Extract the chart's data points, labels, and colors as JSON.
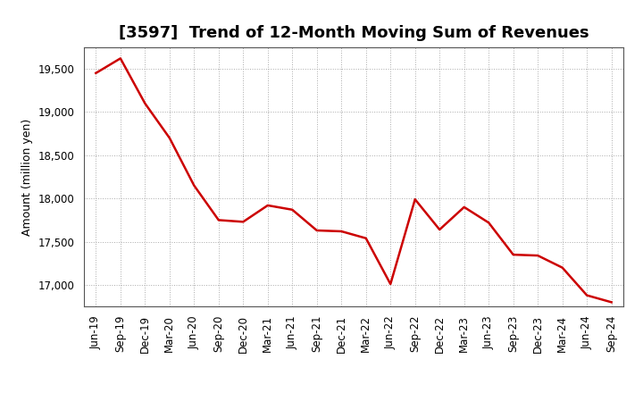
{
  "title": "[3597]  Trend of 12-Month Moving Sum of Revenues",
  "ylabel": "Amount (million yen)",
  "line_color": "#cc0000",
  "background_color": "#ffffff",
  "grid_color": "#aaaaaa",
  "xlabels": [
    "Jun-19",
    "Sep-19",
    "Dec-19",
    "Mar-20",
    "Jun-20",
    "Sep-20",
    "Dec-20",
    "Mar-21",
    "Jun-21",
    "Sep-21",
    "Dec-21",
    "Mar-22",
    "Jun-22",
    "Sep-22",
    "Dec-22",
    "Mar-23",
    "Jun-23",
    "Sep-23",
    "Dec-23",
    "Mar-24",
    "Jun-24",
    "Sep-24"
  ],
  "values": [
    19450,
    19620,
    19100,
    18700,
    18150,
    17750,
    17730,
    17920,
    17870,
    17630,
    17620,
    17540,
    17010,
    17990,
    17640,
    17900,
    17720,
    17350,
    17340,
    17200,
    16880,
    16800
  ],
  "ylim": [
    16750,
    19750
  ],
  "yticks": [
    17000,
    17500,
    18000,
    18500,
    19000,
    19500
  ],
  "title_fontsize": 13,
  "ylabel_fontsize": 9,
  "tick_fontsize": 8.5
}
